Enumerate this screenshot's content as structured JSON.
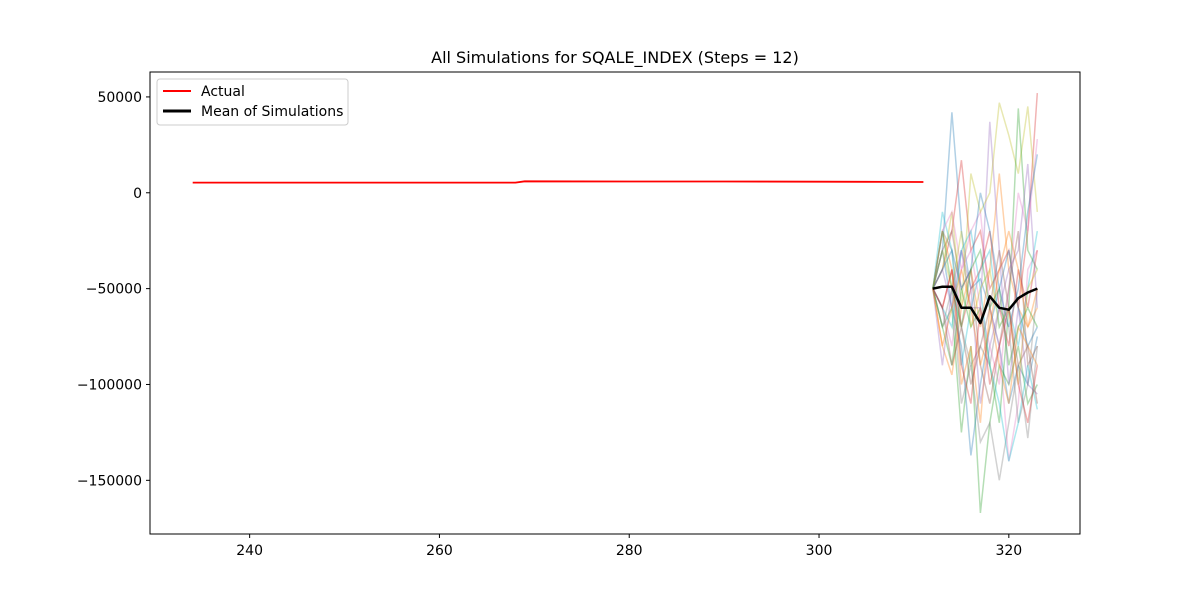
{
  "chart_data": {
    "type": "line",
    "title": "All Simulations for SQALE_INDEX (Steps = 12)",
    "xlabel": "",
    "ylabel": "",
    "xlim": [
      229.5,
      327.5
    ],
    "ylim": [
      -178000,
      63000
    ],
    "x_ticks": [
      240,
      260,
      280,
      300,
      320
    ],
    "y_ticks": [
      50000,
      0,
      -50000,
      -100000,
      -150000
    ],
    "x_tick_labels": [
      "240",
      "260",
      "280",
      "300",
      "320"
    ],
    "y_tick_labels": [
      "50000",
      "0",
      "−50000",
      "−100000",
      "−150000"
    ],
    "grid": false,
    "legend": {
      "position": "upper-left",
      "entries": [
        {
          "label": "Actual",
          "color": "#ff0000"
        },
        {
          "label": "Mean of Simulations",
          "color": "#000000"
        }
      ]
    },
    "series": [
      {
        "name": "Actual",
        "color": "#ff0000",
        "x": [
          234,
          240,
          250,
          260,
          268,
          269,
          280,
          290,
          300,
          305,
          311
        ],
        "y": [
          5300,
          5300,
          5300,
          5300,
          5300,
          6000,
          5900,
          5900,
          5800,
          5700,
          5600
        ]
      },
      {
        "name": "Mean of Simulations",
        "color": "#000000",
        "x": [
          312,
          313,
          314,
          315,
          316,
          317,
          318,
          319,
          320,
          321,
          322,
          323
        ],
        "y": [
          -50000,
          -49000,
          -49000,
          -60000,
          -60000,
          -68000,
          -54000,
          -60000,
          -61000,
          -55000,
          -52000,
          -50000
        ]
      }
    ],
    "simulations": {
      "x": [
        312,
        313,
        314,
        315,
        316,
        317,
        318,
        319,
        320,
        321,
        322,
        323
      ],
      "colors": [
        "#1f77b4",
        "#ff7f0e",
        "#2ca02c",
        "#d62728",
        "#9467bd",
        "#8c564b",
        "#e377c2",
        "#7f7f7f",
        "#bcbd22",
        "#17becf"
      ],
      "runs": [
        [
          -50000,
          -30000,
          42000,
          -20000,
          -50000,
          -45000,
          -60000,
          -80000,
          -110000,
          -90000,
          -100000,
          -75000
        ],
        [
          -50000,
          -80000,
          -95000,
          -60000,
          -40000,
          -70000,
          -40000,
          10000,
          -40000,
          -60000,
          -70000,
          -60000
        ],
        [
          -50000,
          -70000,
          -60000,
          -125000,
          -80000,
          -167000,
          -120000,
          -90000,
          -100000,
          -80000,
          -110000,
          -100000
        ],
        [
          -50000,
          -40000,
          -20000,
          17000,
          -30000,
          -20000,
          -50000,
          -40000,
          -30000,
          -60000,
          -20000,
          52000
        ],
        [
          -50000,
          -90000,
          -50000,
          -30000,
          -60000,
          -60000,
          37000,
          -30000,
          -100000,
          -60000,
          -100000,
          -105000
        ],
        [
          -50000,
          -30000,
          -20000,
          -50000,
          -40000,
          -90000,
          -110000,
          -80000,
          -50000,
          -20000,
          -90000,
          -80000
        ],
        [
          -50000,
          -60000,
          -80000,
          -40000,
          -20000,
          -10000,
          -60000,
          -80000,
          -140000,
          -110000,
          -40000,
          -30000
        ],
        [
          -50000,
          -20000,
          -30000,
          -70000,
          -90000,
          -80000,
          -90000,
          -60000,
          -70000,
          -120000,
          -100000,
          -50000
        ],
        [
          -50000,
          -40000,
          -10000,
          -60000,
          10000,
          -10000,
          0,
          47000,
          30000,
          10000,
          45000,
          -10000
        ],
        [
          -50000,
          -10000,
          -30000,
          -90000,
          -60000,
          -40000,
          -30000,
          -70000,
          -60000,
          -80000,
          -50000,
          -20000
        ],
        [
          -50000,
          -30000,
          -60000,
          -80000,
          -137000,
          -100000,
          -70000,
          -50000,
          -30000,
          -60000,
          -80000,
          -70000
        ],
        [
          -50000,
          -20000,
          -40000,
          -100000,
          -80000,
          -120000,
          -60000,
          -90000,
          -110000,
          -70000,
          -80000,
          -90000
        ],
        [
          -50000,
          -70000,
          -90000,
          -50000,
          -70000,
          -60000,
          -90000,
          -120000,
          -60000,
          44000,
          -30000,
          -40000
        ],
        [
          -50000,
          -60000,
          -40000,
          -70000,
          -50000,
          -40000,
          -20000,
          -60000,
          -80000,
          -40000,
          -60000,
          -30000
        ],
        [
          -50000,
          -40000,
          -60000,
          -30000,
          -50000,
          -110000,
          -80000,
          -60000,
          -40000,
          -30000,
          15000,
          -60000
        ],
        [
          -50000,
          -60000,
          -90000,
          -70000,
          -100000,
          -80000,
          -60000,
          -30000,
          -60000,
          -90000,
          -80000,
          -110000
        ],
        [
          -50000,
          -20000,
          -10000,
          -40000,
          -30000,
          -60000,
          -80000,
          -100000,
          -50000,
          0,
          -20000,
          28000
        ],
        [
          -50000,
          -70000,
          -50000,
          -110000,
          -90000,
          -130000,
          -120000,
          -150000,
          -120000,
          -90000,
          -128000,
          -80000
        ],
        [
          -50000,
          -30000,
          -50000,
          -20000,
          -70000,
          -50000,
          -40000,
          -70000,
          -60000,
          -100000,
          -50000,
          -40000
        ],
        [
          -50000,
          -60000,
          -70000,
          -30000,
          -20000,
          -50000,
          -90000,
          -110000,
          -140000,
          -120000,
          -90000,
          -113000
        ],
        [
          -50000,
          -40000,
          -30000,
          -50000,
          -40000,
          0,
          -20000,
          -50000,
          -70000,
          -50000,
          -10000,
          20000
        ],
        [
          -50000,
          -80000,
          -60000,
          -40000,
          -60000,
          -90000,
          -70000,
          -40000,
          -20000,
          -40000,
          -70000,
          -50000
        ],
        [
          -50000,
          -20000,
          -50000,
          -70000,
          -40000,
          -30000,
          -60000,
          -50000,
          -90000,
          -70000,
          -60000,
          -70000
        ],
        [
          -50000,
          -60000,
          -40000,
          -90000,
          -110000,
          -60000,
          -100000,
          -80000,
          -60000,
          -100000,
          -120000,
          -90000
        ]
      ]
    }
  }
}
